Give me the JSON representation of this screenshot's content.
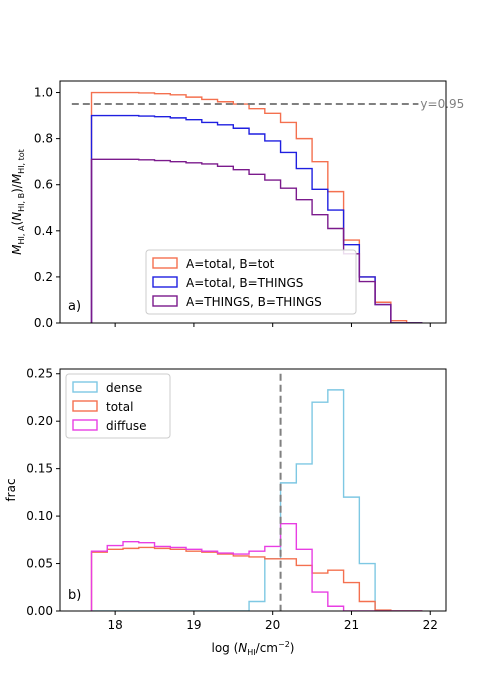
{
  "chart_data": [
    {
      "type": "line",
      "panel_label": "a)",
      "ylabel": "M_HI,A(N_HI,B)/M_HI,tot",
      "ylim": [
        0,
        1.05
      ],
      "yticks": [
        "0.0",
        "0.2",
        "0.4",
        "0.6",
        "0.8",
        "1.0"
      ],
      "xlim": [
        17.3,
        22.2
      ],
      "xticks": [
        18,
        19,
        20,
        21,
        22
      ],
      "show_xticklabels": false,
      "step": 0.2,
      "x_start": 17.7,
      "reference_line": {
        "y": 0.95,
        "label": "y=0.95",
        "color": "#808080"
      },
      "legend": {
        "placement": "lower-center"
      },
      "series": [
        {
          "name": "A=total, B=tot",
          "color": "#f4704f",
          "values": [
            1.0,
            1.0,
            1.0,
            0.998,
            0.995,
            0.99,
            0.98,
            0.97,
            0.96,
            0.95,
            0.93,
            0.91,
            0.87,
            0.8,
            0.7,
            0.57,
            0.36,
            0.2,
            0.09,
            0.01,
            0.0
          ]
        },
        {
          "name": "A=total, B=THINGS",
          "color": "#1f1fe0",
          "values": [
            0.9,
            0.9,
            0.9,
            0.898,
            0.895,
            0.89,
            0.882,
            0.87,
            0.86,
            0.845,
            0.82,
            0.79,
            0.74,
            0.67,
            0.58,
            0.49,
            0.34,
            0.2,
            0.08,
            0.0,
            0.0
          ]
        },
        {
          "name": "A=THINGS, B=THINGS",
          "color": "#7b1a8c",
          "values": [
            0.71,
            0.71,
            0.71,
            0.708,
            0.705,
            0.7,
            0.695,
            0.69,
            0.68,
            0.665,
            0.645,
            0.62,
            0.585,
            0.535,
            0.47,
            0.41,
            0.3,
            0.18,
            0.08,
            0.0,
            0.0
          ]
        }
      ]
    },
    {
      "type": "line",
      "panel_label": "b)",
      "ylabel": "frac",
      "xlabel": "log (N_HI/cm^-2)",
      "ylim": [
        0,
        0.255
      ],
      "yticks": [
        "0.00",
        "0.05",
        "0.10",
        "0.15",
        "0.20",
        "0.25"
      ],
      "xlim": [
        17.3,
        22.2
      ],
      "xticks": [
        "18",
        "19",
        "20",
        "21",
        "22"
      ],
      "step": 0.2,
      "x_start": 17.7,
      "reference_vline": {
        "x": 20.1,
        "color": "#808080"
      },
      "legend": {
        "placement": "top-left"
      },
      "series": [
        {
          "name": "dense",
          "color": "#7ec8e3",
          "values": [
            0,
            0,
            0,
            0,
            0,
            0,
            0,
            0,
            0,
            0,
            0.01,
            0.055,
            0.135,
            0.155,
            0.22,
            0.233,
            0.12,
            0.05,
            0,
            0,
            0
          ]
        },
        {
          "name": "total",
          "color": "#f4704f",
          "values": [
            0.062,
            0.065,
            0.066,
            0.067,
            0.066,
            0.065,
            0.063,
            0.062,
            0.06,
            0.058,
            0.057,
            0.055,
            0.055,
            0.048,
            0.04,
            0.043,
            0.03,
            0.01,
            0.001,
            0,
            0
          ]
        },
        {
          "name": "diffuse",
          "color": "#e83ee3",
          "values": [
            0.063,
            0.069,
            0.073,
            0.072,
            0.068,
            0.067,
            0.065,
            0.063,
            0.061,
            0.06,
            0.063,
            0.068,
            0.092,
            0.065,
            0.02,
            0.005,
            0,
            0,
            0,
            0,
            0
          ]
        }
      ]
    }
  ]
}
